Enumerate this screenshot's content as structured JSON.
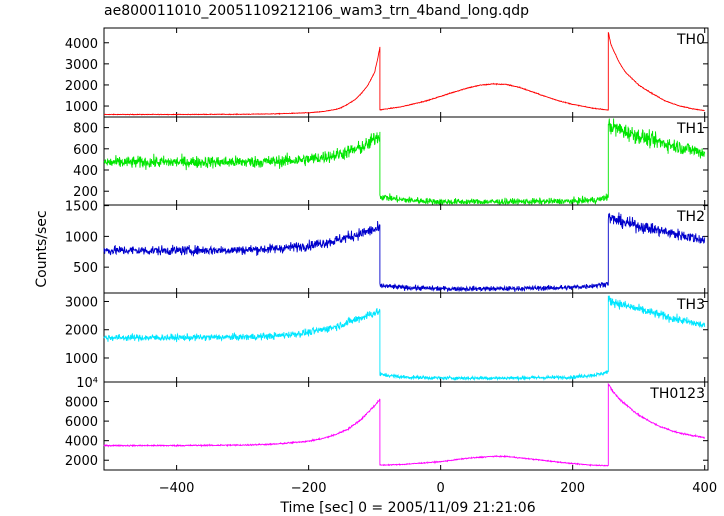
{
  "title": "ae800011010_20051109212106_wam3_trn_4band_long.qdp",
  "chart_data": {
    "type": "line",
    "xlabel": "Time [sec] 0 = 2005/11/09 21:21:06",
    "ylabel": "Counts/sec",
    "xlim": [
      -510,
      405
    ],
    "xticks": [
      -400,
      -200,
      0,
      200,
      400
    ],
    "xtick_labels": [
      "−400",
      "−200",
      "0",
      "200",
      "400"
    ],
    "x_breaks": [
      -92,
      254
    ],
    "panels": [
      {
        "name": "TH0",
        "color": "#ff0000",
        "ylim": [
          480,
          4700
        ],
        "yticks": [
          1000,
          2000,
          3000,
          4000
        ],
        "ytick_labels": [
          "1000",
          "2000",
          "3000",
          "4000"
        ],
        "noise": 12,
        "segments": [
          {
            "x": [
              -510,
              -400,
              -300,
              -250,
              -200,
              -180,
              -160,
              -150,
              -140,
              -130,
              -120,
              -110,
              -100,
              -95,
              -92
            ],
            "y": [
              600,
              600,
              610,
              630,
              680,
              730,
              830,
              930,
              1100,
              1300,
              1600,
              2000,
              2600,
              3300,
              3800
            ]
          },
          {
            "x": [
              -92,
              -60,
              -20,
              0,
              20,
              40,
              60,
              80,
              100,
              120,
              140,
              160,
              180,
              200,
              230,
              254
            ],
            "y": [
              820,
              960,
              1260,
              1460,
              1660,
              1850,
              1990,
              2050,
              2020,
              1880,
              1660,
              1440,
              1240,
              1080,
              900,
              810
            ]
          },
          {
            "x": [
              254,
              258,
              270,
              280,
              300,
              320,
              340,
              360,
              380,
              400
            ],
            "y": [
              4500,
              3900,
              3100,
              2600,
              2000,
              1600,
              1250,
              1020,
              880,
              780
            ]
          }
        ]
      },
      {
        "name": "TH1",
        "color": "#00e600",
        "ylim": [
          70,
          900
        ],
        "yticks": [
          200,
          400,
          600,
          800
        ],
        "ytick_labels": [
          "200",
          "400",
          "600",
          "800"
        ],
        "noise": 28,
        "segments": [
          {
            "x": [
              -510,
              -400,
              -300,
              -250,
              -200,
              -160,
              -130,
              -110,
              -100,
              -92
            ],
            "y": [
              470,
              475,
              475,
              480,
              500,
              540,
              590,
              640,
              700,
              730
            ]
          },
          {
            "x": [
              -92,
              -60,
              0,
              100,
              200,
              240,
              254
            ],
            "y": [
              150,
              120,
              100,
              100,
              105,
              120,
              150
            ]
          },
          {
            "x": [
              254,
              280,
              320,
              360,
              400
            ],
            "y": [
              820,
              760,
              680,
              620,
              560
            ]
          }
        ]
      },
      {
        "name": "TH2",
        "color": "#0000cc",
        "ylim": [
          80,
          1510
        ],
        "yticks": [
          500,
          1000,
          1500
        ],
        "ytick_labels": [
          "500",
          "1000",
          "1500"
        ],
        "noise": 38,
        "segments": [
          {
            "x": [
              -510,
              -400,
              -300,
              -250,
              -200,
              -160,
              -130,
              -110,
              -100,
              -92
            ],
            "y": [
              770,
              770,
              780,
              800,
              850,
              930,
              1020,
              1080,
              1110,
              1130
            ]
          },
          {
            "x": [
              -92,
              -60,
              0,
              100,
              200,
              240,
              254
            ],
            "y": [
              200,
              170,
              150,
              150,
              170,
              210,
              240
            ]
          },
          {
            "x": [
              254,
              280,
              320,
              360,
              400
            ],
            "y": [
              1300,
              1220,
              1120,
              1030,
              940
            ]
          }
        ]
      },
      {
        "name": "TH3",
        "color": "#00e6ff",
        "ylim": [
          150,
          3300
        ],
        "yticks": [
          1000,
          2000,
          3000
        ],
        "ytick_labels": [
          "1000",
          "2000",
          "3000"
        ],
        "noise": 60,
        "segments": [
          {
            "x": [
              -510,
              -400,
              -300,
              -250,
              -200,
              -160,
              -130,
              -110,
              -100,
              -92
            ],
            "y": [
              1720,
              1720,
              1740,
              1780,
              1900,
              2100,
              2350,
              2520,
              2600,
              2650
            ]
          },
          {
            "x": [
              -92,
              -60,
              0,
              100,
              200,
              240,
              254
            ],
            "y": [
              420,
              330,
              290,
              290,
              320,
              420,
              520
            ]
          },
          {
            "x": [
              254,
              280,
              320,
              360,
              400
            ],
            "y": [
              3050,
              2850,
              2600,
              2350,
              2150
            ]
          }
        ]
      },
      {
        "name": "TH0123",
        "color": "#ff00ff",
        "ylim": [
          1000,
          10000
        ],
        "yticks": [
          2000,
          4000,
          6000,
          8000,
          10000
        ],
        "ytick_labels": [
          "2000",
          "4000",
          "6000",
          "8000",
          "10⁴"
        ],
        "noise": 40,
        "segments": [
          {
            "x": [
              -510,
              -400,
              -300,
              -250,
              -200,
              -180,
              -160,
              -140,
              -120,
              -100,
              -92
            ],
            "y": [
              3500,
              3500,
              3550,
              3650,
              3950,
              4200,
              4600,
              5200,
              6200,
              7600,
              8200
            ]
          },
          {
            "x": [
              -92,
              -60,
              0,
              40,
              80,
              100,
              140,
              200,
              230,
              254
            ],
            "y": [
              1500,
              1560,
              1850,
              2200,
              2400,
              2380,
              2100,
              1650,
              1500,
              1450
            ]
          },
          {
            "x": [
              254,
              258,
              270,
              300,
              330,
              360,
              400
            ],
            "y": [
              9800,
              9300,
              8300,
              6600,
              5500,
              4800,
              4300
            ]
          }
        ]
      }
    ]
  }
}
